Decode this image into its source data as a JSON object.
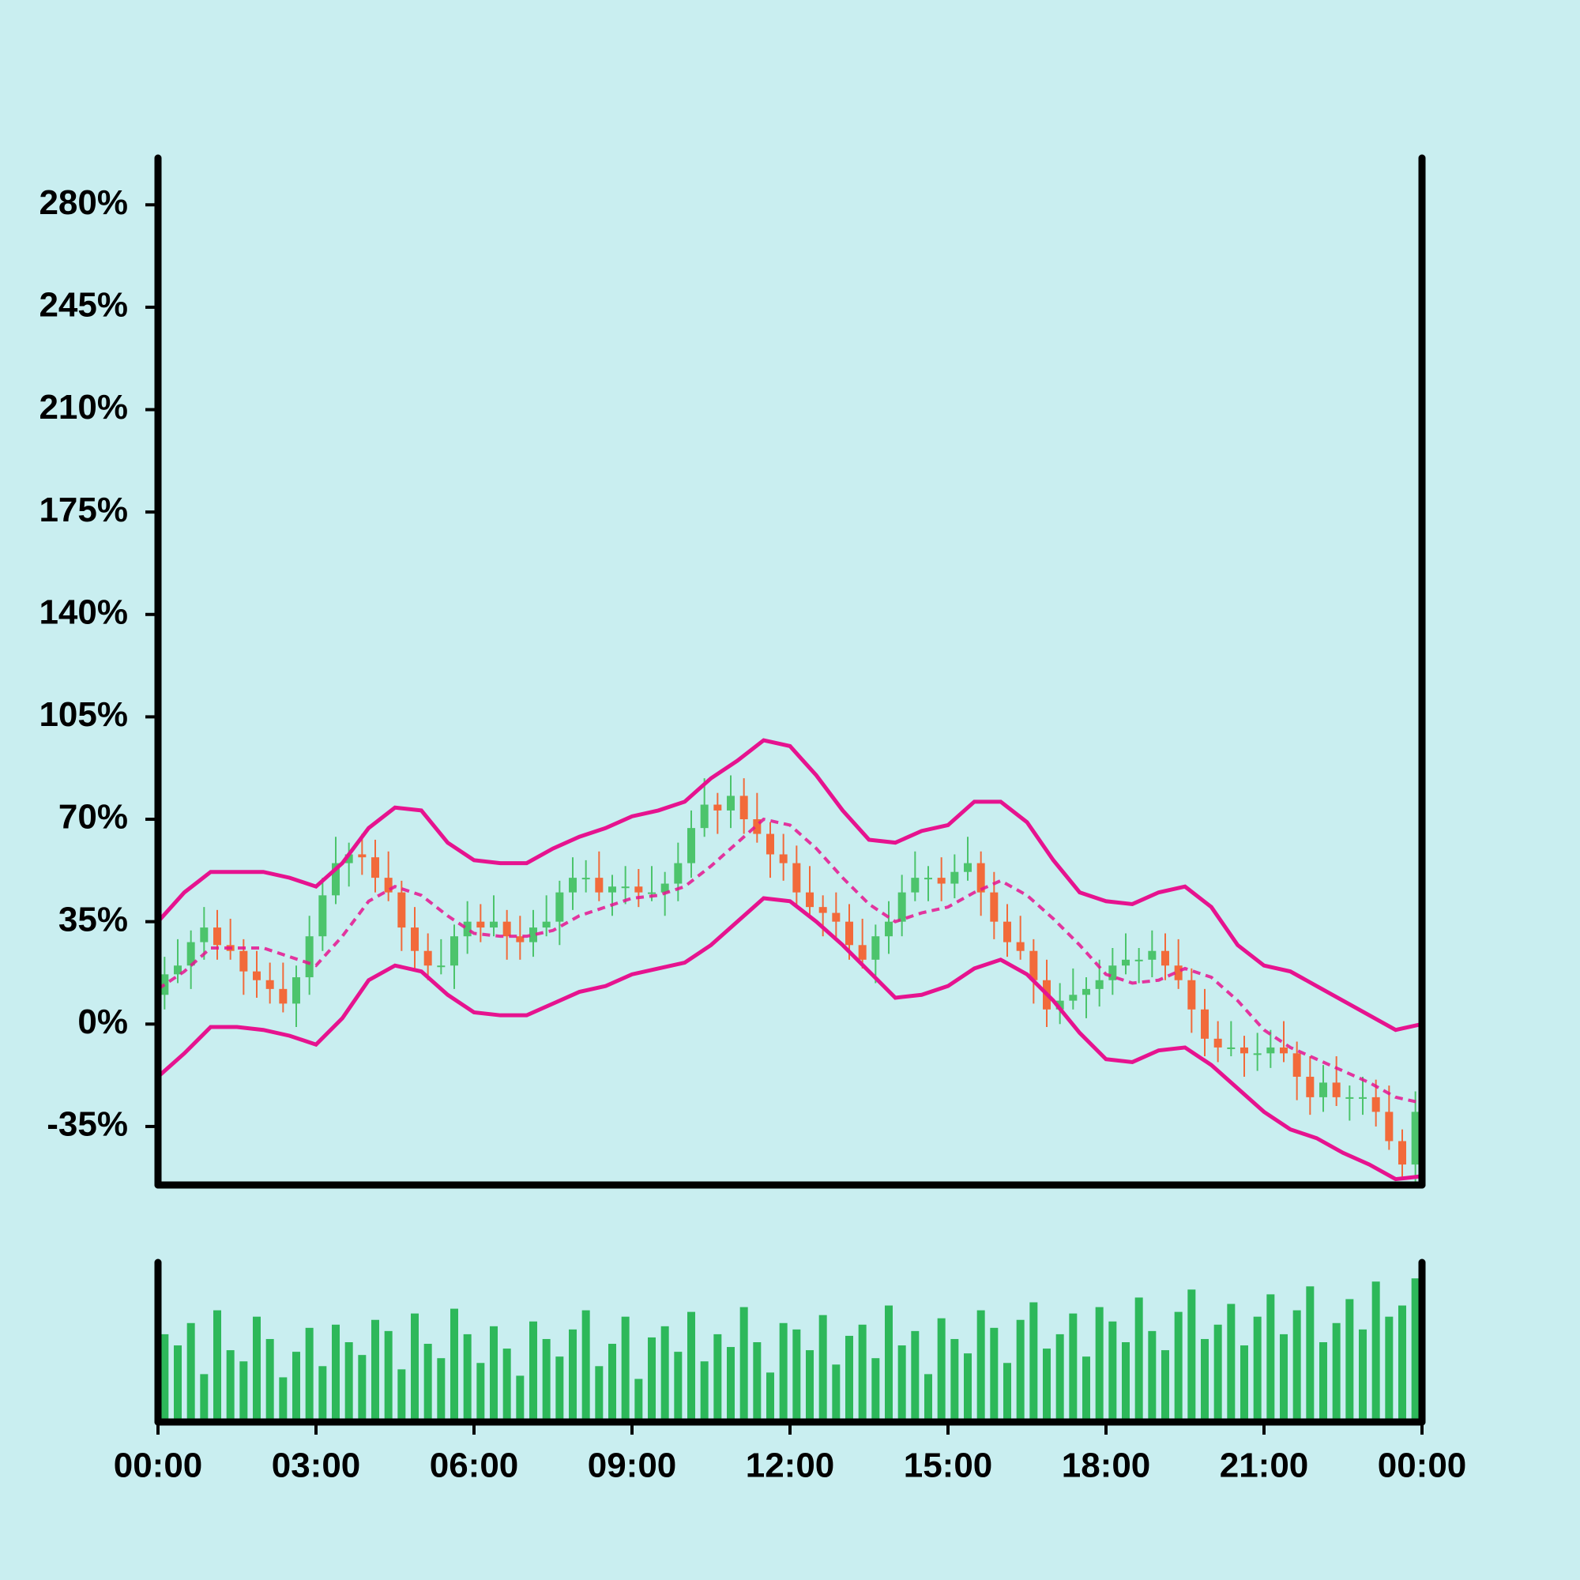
{
  "chart_data": {
    "type": "candlestick",
    "up_color": "#4cc46c",
    "down_color": "#f26a3a",
    "volume_color": "#2db85a",
    "band_color": "#e6138f",
    "xlim": [
      0,
      24
    ],
    "xticks": [
      {
        "value": 0,
        "label": "00:00"
      },
      {
        "value": 3,
        "label": "03:00"
      },
      {
        "value": 6,
        "label": "06:00"
      },
      {
        "value": 9,
        "label": "09:00"
      },
      {
        "value": 12,
        "label": "12:00"
      },
      {
        "value": 15,
        "label": "15:00"
      },
      {
        "value": 18,
        "label": "18:00"
      },
      {
        "value": 21,
        "label": "21:00"
      },
      {
        "value": 24,
        "label": "00:00"
      }
    ],
    "ylim": [
      -55,
      296
    ],
    "yticks": [
      {
        "value": -35,
        "label": "-35%"
      },
      {
        "value": 0,
        "label": "0%"
      },
      {
        "value": 35,
        "label": "35%"
      },
      {
        "value": 70,
        "label": "70%"
      },
      {
        "value": 105,
        "label": "105%"
      },
      {
        "value": 140,
        "label": "140%"
      },
      {
        "value": 175,
        "label": "175%"
      },
      {
        "value": 210,
        "label": "210%"
      },
      {
        "value": 245,
        "label": "245%"
      },
      {
        "value": 280,
        "label": "280%"
      }
    ],
    "volume_ylim": [
      0,
      100
    ],
    "x": [
      0.125,
      0.375,
      0.625,
      0.875,
      1.125,
      1.375,
      1.625,
      1.875,
      2.125,
      2.375,
      2.625,
      2.875,
      3.125,
      3.375,
      3.625,
      3.875,
      4.125,
      4.375,
      4.625,
      4.875,
      5.125,
      5.375,
      5.625,
      5.875,
      6.125,
      6.375,
      6.625,
      6.875,
      7.125,
      7.375,
      7.625,
      7.875,
      8.125,
      8.375,
      8.625,
      8.875,
      9.125,
      9.375,
      9.625,
      9.875,
      10.125,
      10.375,
      10.625,
      10.875,
      11.125,
      11.375,
      11.625,
      11.875,
      12.125,
      12.375,
      12.625,
      12.875,
      13.125,
      13.375,
      13.625,
      13.875,
      14.125,
      14.375,
      14.625,
      14.875,
      15.125,
      15.375,
      15.625,
      15.875,
      16.125,
      16.375,
      16.625,
      16.875,
      17.125,
      17.375,
      17.625,
      17.875,
      18.125,
      18.375,
      18.625,
      18.875,
      19.125,
      19.375,
      19.625,
      19.875,
      20.125,
      20.375,
      20.625,
      20.875,
      21.125,
      21.375,
      21.625,
      21.875,
      22.125,
      22.375,
      22.625,
      22.875,
      23.125,
      23.375,
      23.625,
      23.875
    ],
    "open": [
      10,
      17,
      20,
      28,
      33,
      27,
      25,
      18,
      15,
      12,
      7,
      16,
      30,
      44,
      55,
      58,
      57,
      50,
      45,
      33,
      25,
      20,
      20,
      30,
      35,
      33,
      35,
      30,
      28,
      33,
      35,
      45,
      50,
      50,
      45,
      47,
      47,
      45,
      45,
      48,
      55,
      67,
      75,
      73,
      78,
      70,
      65,
      58,
      55,
      45,
      40,
      38,
      35,
      27,
      22,
      30,
      35,
      45,
      50,
      50,
      48,
      52,
      55,
      45,
      35,
      28,
      25,
      15,
      5,
      8,
      10,
      12,
      15,
      20,
      22,
      22,
      25,
      20,
      15,
      5,
      -5,
      -8,
      -8,
      -10,
      -10,
      -8,
      -10,
      -18,
      -25,
      -20,
      -25,
      -25,
      -25,
      -30,
      -40,
      -48
    ],
    "high": [
      23,
      29,
      32,
      40,
      39,
      36,
      29,
      25,
      21,
      21,
      20,
      37,
      50,
      64,
      62,
      65,
      63,
      59,
      49,
      40,
      31,
      29,
      34,
      42,
      41,
      44,
      39,
      37,
      39,
      44,
      49,
      57,
      56,
      59,
      51,
      54,
      53,
      54,
      52,
      62,
      73,
      84,
      79,
      85,
      84,
      79,
      69,
      65,
      61,
      54,
      44,
      45,
      41,
      36,
      34,
      42,
      51,
      59,
      54,
      57,
      58,
      64,
      59,
      52,
      41,
      37,
      29,
      22,
      14,
      19,
      16,
      22,
      26,
      31,
      26,
      32,
      31,
      29,
      19,
      12,
      1,
      1,
      -4,
      -3,
      -2,
      1,
      -6,
      -11,
      -14,
      -11,
      -21,
      -18,
      -19,
      -21,
      -36,
      -23
    ],
    "low": [
      5,
      14,
      12,
      22,
      22,
      22,
      10,
      9,
      7,
      4,
      -1,
      10,
      25,
      41,
      47,
      51,
      45,
      42,
      25,
      19,
      15,
      17,
      12,
      24,
      28,
      30,
      22,
      22,
      23,
      30,
      27,
      39,
      45,
      42,
      37,
      41,
      40,
      42,
      37,
      42,
      50,
      64,
      65,
      67,
      65,
      62,
      50,
      49,
      40,
      37,
      30,
      29,
      22,
      19,
      14,
      24,
      30,
      42,
      42,
      42,
      43,
      49,
      37,
      29,
      23,
      22,
      7,
      -1,
      0,
      5,
      2,
      6,
      10,
      17,
      14,
      16,
      15,
      12,
      -3,
      -11,
      -13,
      -11,
      -18,
      -16,
      -15,
      -13,
      -26,
      -31,
      -30,
      -28,
      -33,
      -31,
      -35,
      -43,
      -53,
      -54
    ],
    "close": [
      17,
      20,
      28,
      33,
      27,
      25,
      18,
      15,
      12,
      7,
      16,
      30,
      44,
      55,
      58,
      57,
      50,
      45,
      33,
      25,
      20,
      20,
      30,
      35,
      33,
      35,
      30,
      28,
      33,
      35,
      45,
      50,
      50,
      45,
      47,
      47,
      45,
      45,
      48,
      55,
      67,
      75,
      73,
      78,
      70,
      65,
      58,
      55,
      45,
      40,
      38,
      35,
      27,
      22,
      30,
      35,
      45,
      50,
      50,
      48,
      52,
      55,
      45,
      35,
      28,
      25,
      15,
      5,
      8,
      10,
      12,
      15,
      20,
      22,
      22,
      25,
      20,
      15,
      5,
      -5,
      -8,
      -8,
      -10,
      -10,
      -8,
      -10,
      -18,
      -25,
      -20,
      -25,
      -25,
      -25,
      -30,
      -40,
      -48,
      -30
    ],
    "volume": [
      55,
      48,
      62,
      30,
      70,
      45,
      38,
      66,
      52,
      28,
      44,
      59,
      35,
      61,
      50,
      42,
      64,
      57,
      33,
      68,
      49,
      40,
      71,
      55,
      37,
      60,
      46,
      29,
      63,
      52,
      41,
      58,
      70,
      35,
      49,
      66,
      27,
      53,
      60,
      44,
      69,
      38,
      55,
      47,
      72,
      50,
      31,
      62,
      58,
      45,
      67,
      36,
      54,
      61,
      40,
      73,
      48,
      57,
      30,
      65,
      52,
      43,
      70,
      59,
      37,
      64,
      75,
      46,
      55,
      68,
      41,
      72,
      63,
      50,
      78,
      57,
      45,
      69,
      83,
      52,
      61,
      74,
      48,
      66,
      80,
      55,
      70,
      85,
      50,
      62,
      77,
      58,
      88,
      66,
      73,
      90
    ],
    "band_x": [
      0,
      0.5,
      1,
      1.5,
      2,
      2.5,
      3,
      3.5,
      4,
      4.5,
      5,
      5.5,
      6,
      6.5,
      7,
      7.5,
      8,
      8.5,
      9,
      9.5,
      10,
      10.5,
      11,
      11.5,
      12,
      12.5,
      13,
      13.5,
      14,
      14.5,
      15,
      15.5,
      16,
      16.5,
      17,
      17.5,
      18,
      18.5,
      19,
      19.5,
      20,
      20.5,
      21,
      21.5,
      22,
      22.5,
      23,
      23.5,
      24
    ],
    "bands": [
      {
        "dashed": false,
        "values": [
          35,
          45,
          52,
          52,
          52,
          50,
          47,
          55,
          67,
          74,
          73,
          62,
          56,
          55,
          55,
          60,
          64,
          67,
          71,
          73,
          76,
          84,
          90,
          97,
          95,
          85,
          73,
          63,
          62,
          66,
          68,
          76,
          76,
          69,
          56,
          45,
          42,
          41,
          45,
          47,
          40,
          27,
          20,
          18,
          13,
          8,
          3,
          -2,
          0
        ]
      },
      {
        "dashed": true,
        "values": [
          12,
          18,
          26,
          26,
          26,
          23,
          20,
          30,
          42,
          47,
          44,
          37,
          31,
          30,
          30,
          32,
          37,
          40,
          43,
          44,
          47,
          54,
          62,
          70,
          68,
          60,
          50,
          41,
          35,
          38,
          40,
          45,
          49,
          44,
          36,
          27,
          17,
          14,
          15,
          19,
          16,
          8,
          -2,
          -8,
          -12,
          -16,
          -20,
          -25,
          -27
        ]
      },
      {
        "dashed": false,
        "values": [
          -18,
          -10,
          -1,
          -1,
          -2,
          -4,
          -7,
          2,
          15,
          20,
          18,
          10,
          4,
          3,
          3,
          7,
          11,
          13,
          17,
          19,
          21,
          27,
          35,
          43,
          42,
          35,
          27,
          18,
          9,
          10,
          13,
          19,
          22,
          17,
          8,
          -3,
          -12,
          -13,
          -9,
          -8,
          -14,
          -22,
          -30,
          -36,
          -39,
          -44,
          -48,
          -53,
          -52
        ]
      }
    ]
  }
}
